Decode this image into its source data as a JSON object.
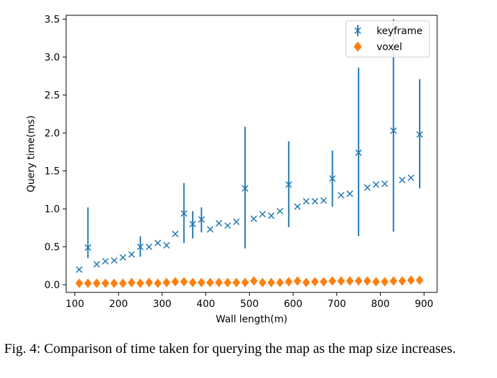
{
  "chart_data": {
    "type": "scatter",
    "xlabel": "Wall length(m)",
    "ylabel": "Query time(ms)",
    "xlim": [
      80,
      930
    ],
    "ylim": [
      -0.1,
      3.55
    ],
    "xticks": [
      100,
      200,
      300,
      400,
      500,
      600,
      700,
      800,
      900
    ],
    "xtick_labels": [
      "100",
      "200",
      "300",
      "400",
      "500",
      "600",
      "700",
      "800",
      "900"
    ],
    "yticks": [
      0.0,
      0.5,
      1.0,
      1.5,
      2.0,
      2.5,
      3.0,
      3.5
    ],
    "ytick_labels": [
      "0.0",
      "0.5",
      "1.0",
      "1.5",
      "2.0",
      "2.5",
      "3.0",
      "3.5"
    ],
    "legend_position": "top-right",
    "series": [
      {
        "name": "keyframe",
        "marker": "x",
        "color": "#1f77b4",
        "x": [
          110,
          130,
          150,
          170,
          190,
          210,
          230,
          250,
          270,
          290,
          310,
          330,
          350,
          370,
          390,
          410,
          430,
          450,
          470,
          490,
          510,
          530,
          550,
          570,
          590,
          610,
          630,
          650,
          670,
          690,
          710,
          730,
          750,
          770,
          790,
          810,
          830,
          850,
          870,
          890
        ],
        "y": [
          0.2,
          0.49,
          0.27,
          0.31,
          0.32,
          0.36,
          0.4,
          0.5,
          0.5,
          0.55,
          0.52,
          0.67,
          0.94,
          0.8,
          0.86,
          0.73,
          0.81,
          0.78,
          0.83,
          1.27,
          0.87,
          0.93,
          0.91,
          0.97,
          1.32,
          1.03,
          1.1,
          1.1,
          1.11,
          1.4,
          1.18,
          1.2,
          1.74,
          1.28,
          1.32,
          1.33,
          2.03,
          1.38,
          1.41,
          1.98
        ],
        "error_bars": [
          {
            "x": 130,
            "low": 0.35,
            "high": 1.02
          },
          {
            "x": 250,
            "low": 0.37,
            "high": 0.64
          },
          {
            "x": 350,
            "low": 0.55,
            "high": 1.34
          },
          {
            "x": 370,
            "low": 0.61,
            "high": 0.97
          },
          {
            "x": 390,
            "low": 0.69,
            "high": 1.02
          },
          {
            "x": 490,
            "low": 0.48,
            "high": 2.08
          },
          {
            "x": 590,
            "low": 0.76,
            "high": 1.89
          },
          {
            "x": 690,
            "low": 1.03,
            "high": 1.77
          },
          {
            "x": 750,
            "low": 0.64,
            "high": 2.86
          },
          {
            "x": 830,
            "low": 0.7,
            "high": 3.5
          },
          {
            "x": 890,
            "low": 1.27,
            "high": 2.71
          }
        ]
      },
      {
        "name": "voxel",
        "marker": "diamond",
        "color": "#ff7f0e",
        "x": [
          110,
          130,
          150,
          170,
          190,
          210,
          230,
          250,
          270,
          290,
          310,
          330,
          350,
          370,
          390,
          410,
          430,
          450,
          470,
          490,
          510,
          530,
          550,
          570,
          590,
          610,
          630,
          650,
          670,
          690,
          710,
          730,
          750,
          770,
          790,
          810,
          830,
          850,
          870,
          890
        ],
        "y": [
          0.02,
          0.02,
          0.02,
          0.02,
          0.02,
          0.02,
          0.03,
          0.02,
          0.03,
          0.02,
          0.03,
          0.04,
          0.04,
          0.03,
          0.03,
          0.03,
          0.03,
          0.03,
          0.03,
          0.03,
          0.05,
          0.03,
          0.03,
          0.03,
          0.04,
          0.05,
          0.03,
          0.04,
          0.04,
          0.05,
          0.05,
          0.05,
          0.05,
          0.05,
          0.04,
          0.04,
          0.05,
          0.05,
          0.06,
          0.06
        ]
      }
    ]
  },
  "caption": {
    "text": "Fig. 4: Comparison of time taken for querying the map as the map size increases."
  }
}
